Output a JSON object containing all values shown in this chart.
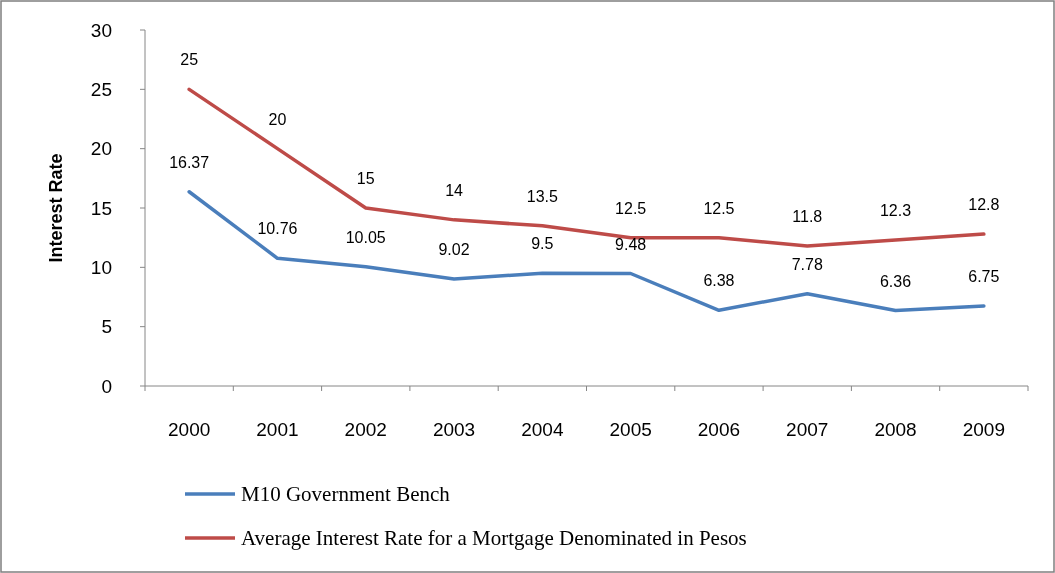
{
  "chart_data": {
    "type": "line",
    "ylabel": "Interest Rate",
    "categories": [
      "2000",
      "2001",
      "2002",
      "2003",
      "2004",
      "2005",
      "2006",
      "2007",
      "2008",
      "2009"
    ],
    "series": [
      {
        "name": "M10 Government Bench",
        "color": "#4a7ebb",
        "values": [
          16.37,
          10.76,
          10.05,
          9.02,
          9.5,
          9.48,
          6.38,
          7.78,
          6.36,
          6.75
        ]
      },
      {
        "name": "Average Interest Rate for a Mortgage Denominated in Pesos",
        "color": "#be4b48",
        "values": [
          25,
          20,
          15,
          14,
          13.5,
          12.5,
          12.5,
          11.8,
          12.3,
          12.8
        ]
      }
    ],
    "ylim": [
      0,
      30
    ],
    "yticks": [
      0,
      5,
      10,
      15,
      20,
      25,
      30
    ],
    "data_labels": true,
    "legend": "bottom",
    "grid": false,
    "marker": "none",
    "line_style": "solid"
  }
}
